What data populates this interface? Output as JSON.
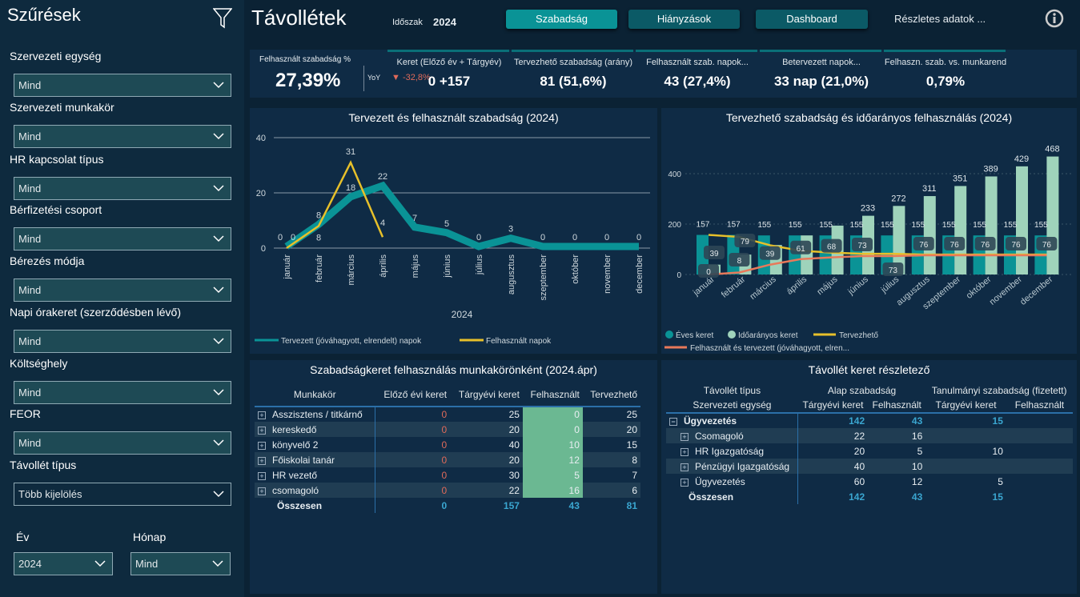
{
  "sidebar": {
    "title": "Szűrések",
    "filters": [
      {
        "label": "Szervezeti egység",
        "value": "Mind"
      },
      {
        "label": "Szervezeti munkakör",
        "value": "Mind"
      },
      {
        "label": "HR kapcsolat típus",
        "value": "Mind"
      },
      {
        "label": "Bérfizetési csoport",
        "value": "Mind"
      },
      {
        "label": "Bérezés módja",
        "value": "Mind"
      },
      {
        "label": "Napi órakeret (szerződésben lévő)",
        "value": "Mind"
      },
      {
        "label": "Költséghely",
        "value": "Mind"
      },
      {
        "label": "FEOR",
        "value": "Mind"
      },
      {
        "label": "Távollét típus",
        "value": "Több kijelölés"
      }
    ],
    "year": {
      "label": "Év",
      "value": "2024"
    },
    "month": {
      "label": "Hónap",
      "value": "Mind"
    }
  },
  "header": {
    "title": "Távollétek",
    "period_label": "Időszak",
    "period_value": "2024",
    "buttons": [
      "Szabadság",
      "Hiányzások",
      "Dashboard"
    ],
    "details_link": "Részletes adatok ..."
  },
  "kpi": {
    "main": {
      "label": "Felhasznált szabadság %",
      "value": "27,39%",
      "yoy_label": "YoY",
      "yoy_value": "-32,8%"
    },
    "cards": [
      {
        "label": "Keret (Előző év + Tárgyév)",
        "value": "0 +157"
      },
      {
        "label": "Tervezhető szabadság (arány)",
        "value": "81 (51,6%)"
      },
      {
        "label": "Felhasznált szab. napok...",
        "value": "43 (27,4%)"
      },
      {
        "label": "Betervezett napok...",
        "value": "33 nap (21,0%)"
      },
      {
        "label": "Felhaszn. szab. vs. munkarend",
        "value": "0,79%"
      }
    ]
  },
  "chart_data": [
    {
      "type": "line",
      "title": "Tervezett és felhasznált szabadság (2024)",
      "xlabel": "2024",
      "ylim": [
        0,
        40
      ],
      "yticks": [
        0,
        20,
        40
      ],
      "grid": true,
      "legend": "bottom-left",
      "categories": [
        "január",
        "február",
        "március",
        "április",
        "május",
        "június",
        "július",
        "augusztus",
        "szeptember",
        "október",
        "november",
        "december"
      ],
      "series": [
        {
          "name": "Tervezett (jóváhagyott, elrendelt) napok",
          "color": "#0a9396",
          "values": [
            0,
            8,
            18,
            22,
            7,
            5,
            0,
            3,
            0,
            0,
            0,
            0
          ]
        },
        {
          "name": "Felhasznált napok",
          "color": "#e7c02a",
          "values": [
            0,
            8,
            31,
            4,
            null,
            null,
            null,
            null,
            null,
            null,
            null,
            null
          ]
        }
      ]
    },
    {
      "type": "bar+line",
      "title": "Tervezhető szabadság és időarányos felhasználás (2024)",
      "ylim": [
        0,
        500
      ],
      "yticks": [
        0,
        200,
        400
      ],
      "legend": "bottom-left",
      "categories": [
        "január",
        "február",
        "március",
        "április",
        "május",
        "június",
        "július",
        "augusztus",
        "szeptember",
        "október",
        "november",
        "december"
      ],
      "series": [
        {
          "name": "Éves keret",
          "kind": "bar",
          "color": "#0a9396",
          "values": [
            157,
            157,
            155,
            155,
            155,
            155,
            155,
            155,
            155,
            155,
            155,
            155
          ]
        },
        {
          "name": "Időarányos keret",
          "kind": "bar",
          "color": "#9fd3bb",
          "values": [
            39,
            79,
            117,
            155,
            194,
            233,
            272,
            311,
            351,
            389,
            429,
            468
          ]
        },
        {
          "name": "Tervezhető",
          "kind": "line",
          "color": "#e7c02a",
          "values": [
            157,
            149,
            116,
            94,
            87,
            82,
            82,
            79,
            79,
            79,
            79,
            79
          ]
        },
        {
          "name": "Felhasznált és tervezett (jóváhagyott, elren...",
          "kind": "line",
          "color": "#e8795a",
          "values": [
            0,
            8,
            39,
            61,
            68,
            73,
            73,
            76,
            76,
            76,
            76,
            76
          ]
        }
      ]
    }
  ],
  "table1": {
    "title": "Szabadságkeret felhasználás munkakörönként (2024.ápr)",
    "columns": [
      "Munkakör",
      "Előző évi keret",
      "Tárgyévi keret",
      "Felhasznált",
      "Tervezhető"
    ],
    "rows": [
      [
        "Asszisztens / titkárnő",
        "0",
        "25",
        "0",
        "25"
      ],
      [
        "kereskedő",
        "0",
        "20",
        "0",
        "20"
      ],
      [
        "könyvelő 2",
        "0",
        "40",
        "10",
        "15"
      ],
      [
        "Főiskolai tanár",
        "0",
        "20",
        "12",
        "8"
      ],
      [
        "HR vezető",
        "0",
        "30",
        "5",
        "7"
      ],
      [
        "csomagoló",
        "0",
        "22",
        "16",
        "6"
      ]
    ],
    "total": [
      "Összesen",
      "0",
      "157",
      "43",
      "81"
    ]
  },
  "table2": {
    "title": "Távollét keret részletező",
    "col_header1": "Távollét típus",
    "col_header2": "Szervezeti egység",
    "groups": [
      "Alap szabadság",
      "Tanulmányi szabadság (fizetett)"
    ],
    "subcols": [
      "Tárgyévi keret",
      "Felhasznált",
      "Tárgyévi keret",
      "Felhasznált"
    ],
    "parent": [
      "Ügyvezetés",
      "142",
      "43",
      "15",
      ""
    ],
    "rows": [
      [
        "Csomagoló",
        "22",
        "16",
        "",
        ""
      ],
      [
        "HR Igazgatóság",
        "20",
        "5",
        "10",
        ""
      ],
      [
        "Pénzügyi Igazgatóság",
        "40",
        "10",
        "",
        ""
      ],
      [
        "Ügyvezetés",
        "60",
        "12",
        "5",
        ""
      ]
    ],
    "total": [
      "Összesen",
      "142",
      "43",
      "15",
      ""
    ]
  }
}
